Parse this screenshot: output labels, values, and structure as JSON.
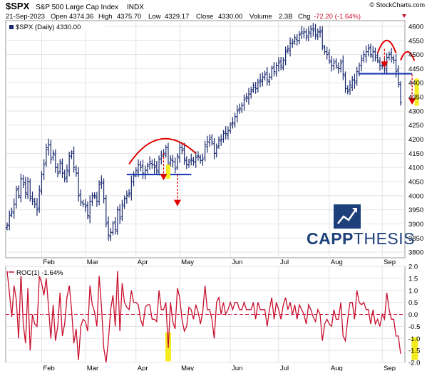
{
  "header": {
    "symbol": "$SPX",
    "name": "S&P 500 Large Cap Index",
    "exchange": "INDX",
    "date": "21-Sep-2023",
    "open_label": "Open",
    "open": "4374.36",
    "high_label": "High",
    "high": "4375.70",
    "low_label": "Low",
    "low": "4329.17",
    "close_label": "Close",
    "close": "4330.00",
    "volume_label": "Volume",
    "volume": "2.3B",
    "chg_label": "Chg",
    "chg": "-72.20 (-1.64%)",
    "credit": "© StockCharts.com"
  },
  "legend": {
    "price": "$SPX (Daily) 4330.00",
    "roc": "ROC(1) -1.64%"
  },
  "brand": {
    "bold": "CAPP",
    "light": "THESIS"
  },
  "colors": {
    "bars": "#1a2a6e",
    "roc_line": "#c8102e",
    "annotation_red": "#e00000",
    "support_line": "#1f3fb5",
    "highlight": "#f5ec1f",
    "grid": "#e3e3e3",
    "brand": "#1d3f7a"
  },
  "chart_data": [
    {
      "type": "ohlc",
      "title": "$SPX (Daily) 4330.00",
      "ylim": [
        3780,
        4620
      ],
      "yticks": [
        3800,
        3850,
        3900,
        3950,
        4000,
        4050,
        4100,
        4150,
        4200,
        4250,
        4300,
        4350,
        4400,
        4450,
        4500,
        4550,
        4600
      ],
      "months": [
        "Feb",
        "Mar",
        "Apr",
        "May",
        "Jun",
        "Jul",
        "Aug",
        "Sep"
      ],
      "month_start_index": [
        15,
        34,
        56,
        75,
        97,
        118,
        140,
        163
      ],
      "series": [
        {
          "name": "$SPX",
          "close": [
            3895,
            3930,
            3945,
            3970,
            4020,
            4000,
            4060,
            4040,
            4010,
            4050,
            3990,
            3985,
            3970,
            3950,
            4020,
            4075,
            4110,
            4170,
            4180,
            4130,
            4150,
            4100,
            4080,
            4120,
            4080,
            4060,
            4090,
            4140,
            4150,
            4100,
            4080,
            4000,
            3980,
            3970,
            3960,
            3930,
            3980,
            3995,
            4000,
            3980,
            4040,
            4050,
            3990,
            3900,
            3860,
            3870,
            3900,
            3880,
            3950,
            3920,
            3970,
            3990,
            4000,
            4010,
            4050,
            4070,
            4090,
            4110,
            4100,
            4080,
            4090,
            4105,
            4120,
            4110,
            4100,
            4090,
            4130,
            4140,
            4150,
            4170,
            4110,
            4130,
            4120,
            4095,
            4140,
            4170,
            4160,
            4130,
            4110,
            4120,
            4130,
            4120,
            4135,
            4140,
            4125,
            4130,
            4180,
            4190,
            4200,
            4190,
            4150,
            4170,
            4200,
            4200,
            4220,
            4220,
            4230,
            4250,
            4260,
            4280,
            4300,
            4310,
            4320,
            4340,
            4350,
            4360,
            4370,
            4390,
            4380,
            4400,
            4410,
            4420,
            4430,
            4410,
            4420,
            4450,
            4440,
            4460,
            4470,
            4460,
            4480,
            4510,
            4520,
            4540,
            4540,
            4560,
            4550,
            4570,
            4580,
            4580,
            4560,
            4580,
            4590,
            4585,
            4570,
            4580,
            4580,
            4530,
            4510,
            4500,
            4480,
            4460,
            4470,
            4460,
            4450,
            4470,
            4430,
            4380,
            4370,
            4390,
            4410,
            4400,
            4440,
            4460,
            4480,
            4500,
            4510,
            4520,
            4500,
            4510,
            4490,
            4480,
            4460,
            4460,
            4450,
            4490,
            4500,
            4490,
            4480,
            4440,
            4400,
            4330
          ]
        },
        {
          "name": "neckline_apr",
          "values": [
            4075
          ]
        },
        {
          "name": "neckline_sep",
          "values": [
            4432
          ]
        }
      ]
    },
    {
      "type": "line",
      "title": "ROC(1) -1.64%",
      "ylim": [
        -2.0,
        2.0
      ],
      "yticks": [
        2.0,
        1.5,
        1.0,
        0.5,
        0.0,
        -0.5,
        -1.0,
        -1.5,
        -2.0
      ],
      "ytick_labels": [
        "2.0",
        "1.5",
        "1.0",
        "0.5",
        "0.0",
        "-0.5",
        "-1.0",
        "-1.5",
        "-2.0"
      ],
      "series": [
        {
          "name": "ROC(1)",
          "values": [
            1.8,
            0.9,
            -0.1,
            1.2,
            0.6,
            -1.0,
            1.7,
            -0.4,
            -1.2,
            1.1,
            -1.5,
            0.0,
            -0.4,
            -0.5,
            1.6,
            1.3,
            0.8,
            1.5,
            0.3,
            -1.0,
            0.4,
            -1.1,
            -0.5,
            0.9,
            -0.9,
            -0.4,
            0.7,
            1.2,
            0.2,
            -1.2,
            -0.6,
            -1.9,
            -0.5,
            -0.2,
            -0.3,
            -0.7,
            1.2,
            0.4,
            0.1,
            -0.5,
            1.6,
            0.3,
            -1.4,
            -2.0,
            -1.1,
            0.2,
            0.8,
            -0.5,
            1.8,
            -0.7,
            1.3,
            0.5,
            0.3,
            0.2,
            1.0,
            0.5,
            0.5,
            0.4,
            -0.2,
            -0.5,
            0.3,
            0.4,
            0.4,
            -0.2,
            -0.2,
            -0.3,
            1.0,
            0.2,
            0.2,
            0.5,
            -1.4,
            0.5,
            -0.3,
            -0.6,
            1.1,
            0.7,
            -0.2,
            -0.7,
            -0.5,
            0.3,
            0.2,
            -0.2,
            0.4,
            0.1,
            -0.4,
            0.1,
            1.2,
            0.2,
            0.2,
            -0.2,
            -1.0,
            0.5,
            0.7,
            0.0,
            0.5,
            0.0,
            0.2,
            0.5,
            0.2,
            0.5,
            0.5,
            0.2,
            0.2,
            0.5,
            0.2,
            0.2,
            0.2,
            0.5,
            -0.2,
            0.5,
            0.2,
            0.2,
            0.2,
            -0.5,
            0.2,
            0.7,
            -0.2,
            0.5,
            0.2,
            -0.2,
            0.4,
            0.7,
            0.2,
            0.5,
            0.0,
            0.4,
            -0.2,
            0.4,
            0.2,
            0.0,
            -0.4,
            0.4,
            0.2,
            -0.1,
            -0.3,
            0.2,
            0.0,
            -1.1,
            -0.4,
            -0.2,
            -0.4,
            -0.5,
            0.2,
            -0.2,
            -0.2,
            0.5,
            -0.9,
            -1.1,
            -0.2,
            0.5,
            0.5,
            -0.2,
            1.0,
            0.5,
            0.4,
            0.5,
            0.2,
            0.2,
            -0.4,
            0.2,
            -0.4,
            -0.2,
            -0.5,
            0.0,
            -0.2,
            0.9,
            0.2,
            -0.2,
            -0.2,
            -0.9,
            -0.9,
            -1.64
          ]
        }
      ]
    }
  ]
}
